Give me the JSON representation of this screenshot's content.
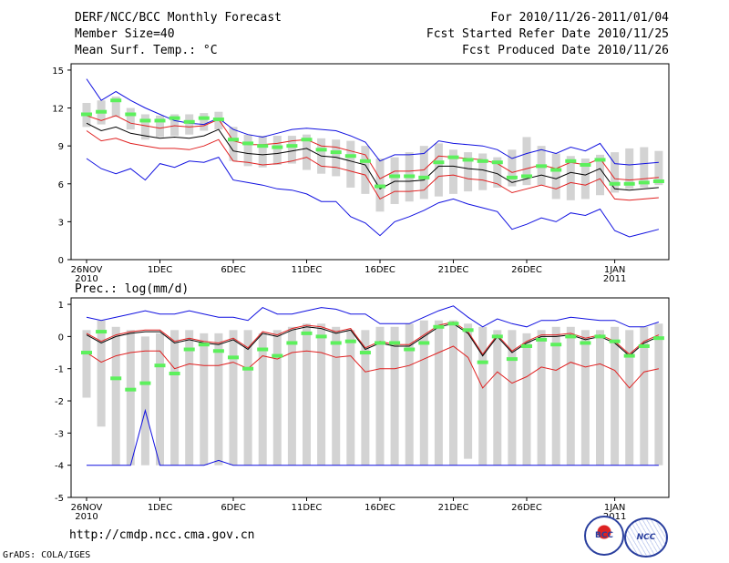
{
  "header": {
    "line1_left": "DERF/NCC/BCC Monthly Forecast",
    "line2_left": "Member Size=40",
    "line3_left": "Mean Surf. Temp.: °C",
    "line1_right": "For 2010/11/26-2011/01/04",
    "line2_right": "Fcst Started Refer Date 2010/11/25",
    "line3_right": "Fcst Produced Date 2010/11/26"
  },
  "footer": {
    "url": "http://cmdp.ncc.cma.gov.cn",
    "grads": "GrADS: COLA/IGES"
  },
  "logos": {
    "bcc": "BCC",
    "ncc": "NCC"
  },
  "colors": {
    "box": "#d3d3d3",
    "median": "#5cf05c",
    "mean": "#000000",
    "spread": "#e02020",
    "envelope": "#1010e0"
  },
  "chart_data": [
    {
      "type": "box",
      "title": "Mean Surf. Temp.: °C",
      "ylim": [
        0,
        15.5
      ],
      "yticks": [
        "0",
        "3",
        "6",
        "9",
        "12",
        "15"
      ],
      "xticks": [
        {
          "day": 0,
          "label": "26NOV",
          "sub": "2010"
        },
        {
          "day": 5,
          "label": "1DEC",
          "sub": ""
        },
        {
          "day": 10,
          "label": "6DEC",
          "sub": ""
        },
        {
          "day": 15,
          "label": "11DEC",
          "sub": ""
        },
        {
          "day": 20,
          "label": "16DEC",
          "sub": ""
        },
        {
          "day": 25,
          "label": "21DEC",
          "sub": ""
        },
        {
          "day": 30,
          "label": "26DEC",
          "sub": ""
        },
        {
          "day": 36,
          "label": "1JAN",
          "sub": "2011"
        }
      ],
      "days": 40,
      "series": {
        "box_low": [
          10.5,
          10.7,
          11.3,
          10.3,
          9.5,
          9.7,
          9.8,
          9.9,
          10.2,
          10.3,
          7.8,
          7.4,
          7.3,
          7.5,
          7.6,
          7.1,
          6.8,
          6.6,
          5.7,
          5.2,
          3.8,
          4.4,
          4.6,
          4.8,
          5.0,
          5.2,
          5.4,
          5.5,
          5.7,
          5.8,
          5.9,
          5.9,
          4.8,
          4.7,
          4.8,
          5.1,
          5.3,
          5.6,
          5.7,
          5.9
        ],
        "box_high": [
          12.4,
          12.6,
          12.9,
          12.0,
          11.5,
          11.4,
          11.5,
          11.5,
          11.6,
          11.7,
          10.5,
          9.9,
          9.8,
          9.8,
          9.8,
          9.9,
          9.6,
          9.5,
          9.4,
          9.0,
          8.0,
          8.1,
          8.5,
          9.0,
          9.2,
          8.7,
          8.5,
          8.4,
          8.1,
          8.7,
          9.7,
          9.0,
          8.4,
          8.2,
          8.0,
          8.3,
          8.5,
          8.8,
          8.9,
          8.6
        ],
        "median": [
          11.5,
          11.7,
          12.6,
          11.5,
          11.0,
          11.0,
          11.2,
          10.9,
          11.2,
          11.1,
          9.5,
          9.2,
          9.0,
          8.9,
          9.0,
          9.5,
          8.7,
          8.5,
          8.2,
          7.8,
          5.8,
          6.6,
          6.6,
          6.5,
          7.7,
          8.1,
          7.9,
          7.8,
          7.7,
          6.5,
          6.6,
          7.4,
          7.1,
          7.8,
          7.5,
          7.9,
          6.0,
          6.0,
          6.1,
          6.2
        ],
        "mean": [
          10.8,
          10.2,
          10.5,
          10.0,
          9.8,
          9.6,
          9.7,
          9.6,
          9.8,
          10.3,
          8.6,
          8.4,
          8.3,
          8.4,
          8.6,
          8.8,
          8.2,
          8.1,
          7.8,
          7.5,
          5.6,
          6.2,
          6.2,
          6.3,
          7.4,
          7.4,
          7.2,
          7.1,
          6.8,
          6.1,
          6.4,
          6.7,
          6.4,
          6.9,
          6.7,
          7.2,
          5.6,
          5.5,
          5.6,
          5.7
        ],
        "spread_hi": [
          11.4,
          11.0,
          11.4,
          10.8,
          10.6,
          10.4,
          10.6,
          10.5,
          10.6,
          11.1,
          9.4,
          9.1,
          9.1,
          9.2,
          9.4,
          9.5,
          9.0,
          8.9,
          8.6,
          8.3,
          6.4,
          7.0,
          7.0,
          7.1,
          8.2,
          8.1,
          8.0,
          7.9,
          7.6,
          6.9,
          7.2,
          7.5,
          7.2,
          7.7,
          7.5,
          8.0,
          6.4,
          6.3,
          6.4,
          6.5
        ],
        "spread_lo": [
          10.2,
          9.4,
          9.6,
          9.2,
          9.0,
          8.8,
          8.8,
          8.7,
          9.0,
          9.5,
          7.8,
          7.7,
          7.5,
          7.6,
          7.8,
          8.1,
          7.4,
          7.3,
          7.0,
          6.7,
          4.8,
          5.4,
          5.4,
          5.5,
          6.6,
          6.7,
          6.4,
          6.3,
          6.0,
          5.3,
          5.6,
          5.9,
          5.6,
          6.1,
          5.9,
          6.4,
          4.8,
          4.7,
          4.8,
          4.9
        ],
        "env_hi": [
          14.3,
          12.6,
          13.3,
          12.6,
          12.0,
          11.5,
          11.0,
          10.8,
          10.7,
          11.2,
          10.3,
          9.9,
          9.7,
          10.0,
          10.3,
          10.4,
          10.3,
          10.2,
          9.8,
          9.3,
          7.8,
          8.3,
          8.3,
          8.4,
          9.4,
          9.2,
          9.1,
          9.0,
          8.7,
          8.0,
          8.4,
          8.7,
          8.4,
          8.9,
          8.6,
          9.2,
          7.6,
          7.5,
          7.6,
          7.7
        ],
        "env_lo": [
          8.0,
          7.2,
          6.8,
          7.2,
          6.3,
          7.6,
          7.3,
          7.8,
          7.7,
          8.1,
          6.3,
          6.1,
          5.9,
          5.6,
          5.5,
          5.2,
          4.6,
          4.6,
          3.4,
          2.9,
          1.9,
          3.0,
          3.4,
          3.9,
          4.5,
          4.8,
          4.4,
          4.1,
          3.8,
          2.4,
          2.8,
          3.3,
          3.0,
          3.7,
          3.5,
          4.0,
          2.3,
          1.8,
          2.1,
          2.4
        ]
      }
    },
    {
      "type": "box",
      "title": "Prec.: log(mm/d)",
      "ylim": [
        -5,
        1.2
      ],
      "yticks": [
        "-5",
        "-4",
        "-3",
        "-2",
        "-1",
        "0",
        "1"
      ],
      "xticks": [
        {
          "day": 0,
          "label": "26NOV",
          "sub": "2010"
        },
        {
          "day": 5,
          "label": "1DEC",
          "sub": ""
        },
        {
          "day": 10,
          "label": "6DEC",
          "sub": ""
        },
        {
          "day": 15,
          "label": "11DEC",
          "sub": ""
        },
        {
          "day": 20,
          "label": "16DEC",
          "sub": ""
        },
        {
          "day": 25,
          "label": "21DEC",
          "sub": ""
        },
        {
          "day": 30,
          "label": "26DEC",
          "sub": ""
        },
        {
          "day": 36,
          "label": "1JAN",
          "sub": "2011"
        }
      ],
      "days": 40,
      "series": {
        "box_low": [
          -1.9,
          -2.8,
          -4.0,
          -4.0,
          -4.0,
          -4.0,
          -4.0,
          -4.0,
          -4.0,
          -4.0,
          -4.0,
          -4.0,
          -4.0,
          -4.0,
          -4.0,
          -4.0,
          -4.0,
          -4.0,
          -4.0,
          -4.0,
          -4.0,
          -4.0,
          -4.0,
          -4.0,
          -4.0,
          -4.0,
          -3.8,
          -4.0,
          -4.0,
          -4.0,
          -4.0,
          -4.0,
          -4.0,
          -4.0,
          -4.0,
          -4.0,
          -4.0,
          -4.0,
          -4.0,
          -4.0
        ],
        "box_high": [
          0.2,
          0.5,
          0.3,
          0.2,
          0.0,
          0.1,
          0.2,
          0.2,
          0.1,
          0.1,
          0.2,
          0.2,
          0.1,
          0.2,
          0.3,
          0.4,
          0.4,
          0.3,
          0.2,
          0.2,
          0.3,
          0.3,
          0.4,
          0.5,
          0.5,
          0.5,
          0.4,
          0.3,
          0.2,
          0.2,
          0.1,
          0.2,
          0.3,
          0.3,
          0.2,
          0.2,
          0.3,
          0.2,
          0.3,
          0.4
        ],
        "median": [
          -0.5,
          0.15,
          -1.3,
          -1.65,
          -1.45,
          -0.9,
          -1.15,
          -0.4,
          -0.25,
          -0.45,
          -0.65,
          -1.0,
          -0.4,
          -0.6,
          -0.2,
          0.1,
          0.0,
          -0.2,
          -0.15,
          -0.5,
          -0.2,
          -0.2,
          -0.4,
          -0.2,
          0.3,
          0.4,
          0.2,
          -0.8,
          0.0,
          -0.7,
          -0.3,
          -0.1,
          -0.25,
          0.0,
          -0.2,
          0.0,
          -0.15,
          -0.6,
          -0.3,
          -0.05
        ],
        "mean": [
          0.05,
          -0.2,
          0.0,
          0.1,
          0.15,
          0.15,
          -0.2,
          -0.1,
          -0.2,
          -0.25,
          -0.1,
          -0.4,
          0.1,
          0.0,
          0.2,
          0.3,
          0.25,
          0.1,
          0.2,
          -0.4,
          -0.2,
          -0.3,
          -0.3,
          0.0,
          0.3,
          0.4,
          0.1,
          -0.6,
          0.0,
          -0.5,
          -0.2,
          0.0,
          0.0,
          0.05,
          -0.1,
          0.0,
          -0.2,
          -0.6,
          -0.2,
          0.0
        ],
        "spread_hi": [
          0.1,
          -0.15,
          0.05,
          0.15,
          0.2,
          0.2,
          -0.15,
          -0.05,
          -0.15,
          -0.2,
          -0.05,
          -0.35,
          0.15,
          0.05,
          0.25,
          0.35,
          0.3,
          0.15,
          0.25,
          -0.35,
          -0.15,
          -0.25,
          -0.25,
          0.05,
          0.35,
          0.45,
          0.15,
          -0.55,
          0.05,
          -0.45,
          -0.15,
          0.05,
          0.05,
          0.1,
          -0.05,
          0.05,
          -0.15,
          -0.55,
          -0.15,
          0.05
        ],
        "spread_lo": [
          -0.5,
          -0.8,
          -0.6,
          -0.5,
          -0.45,
          -0.45,
          -1.0,
          -0.85,
          -0.9,
          -0.9,
          -0.8,
          -1.0,
          -0.6,
          -0.7,
          -0.5,
          -0.45,
          -0.5,
          -0.65,
          -0.6,
          -1.1,
          -1.0,
          -1.0,
          -0.9,
          -0.7,
          -0.5,
          -0.3,
          -0.65,
          -1.6,
          -1.1,
          -1.45,
          -1.25,
          -0.95,
          -1.05,
          -0.8,
          -0.95,
          -0.85,
          -1.05,
          -1.6,
          -1.1,
          -1.0
        ],
        "env_hi": [
          0.6,
          0.5,
          0.6,
          0.7,
          0.8,
          0.7,
          0.7,
          0.8,
          0.7,
          0.6,
          0.6,
          0.5,
          0.9,
          0.7,
          0.7,
          0.8,
          0.9,
          0.85,
          0.7,
          0.7,
          0.4,
          0.4,
          0.4,
          0.6,
          0.8,
          0.95,
          0.6,
          0.3,
          0.55,
          0.4,
          0.3,
          0.5,
          0.5,
          0.6,
          0.55,
          0.5,
          0.5,
          0.3,
          0.3,
          0.45
        ],
        "env_lo": [
          -4.0,
          -4.0,
          -4.0,
          -4.0,
          -2.3,
          -4.0,
          -4.0,
          -4.0,
          -4.0,
          -3.85,
          -4.0,
          -4.0,
          -4.0,
          -4.0,
          -4.0,
          -4.0,
          -4.0,
          -4.0,
          -4.0,
          -4.0,
          -4.0,
          -4.0,
          -4.0,
          -4.0,
          -4.0,
          -4.0,
          -4.0,
          -4.0,
          -4.0,
          -4.0,
          -4.0,
          -4.0,
          -4.0,
          -4.0,
          -4.0,
          -4.0,
          -4.0,
          -4.0,
          -4.0,
          -4.0
        ]
      }
    }
  ]
}
